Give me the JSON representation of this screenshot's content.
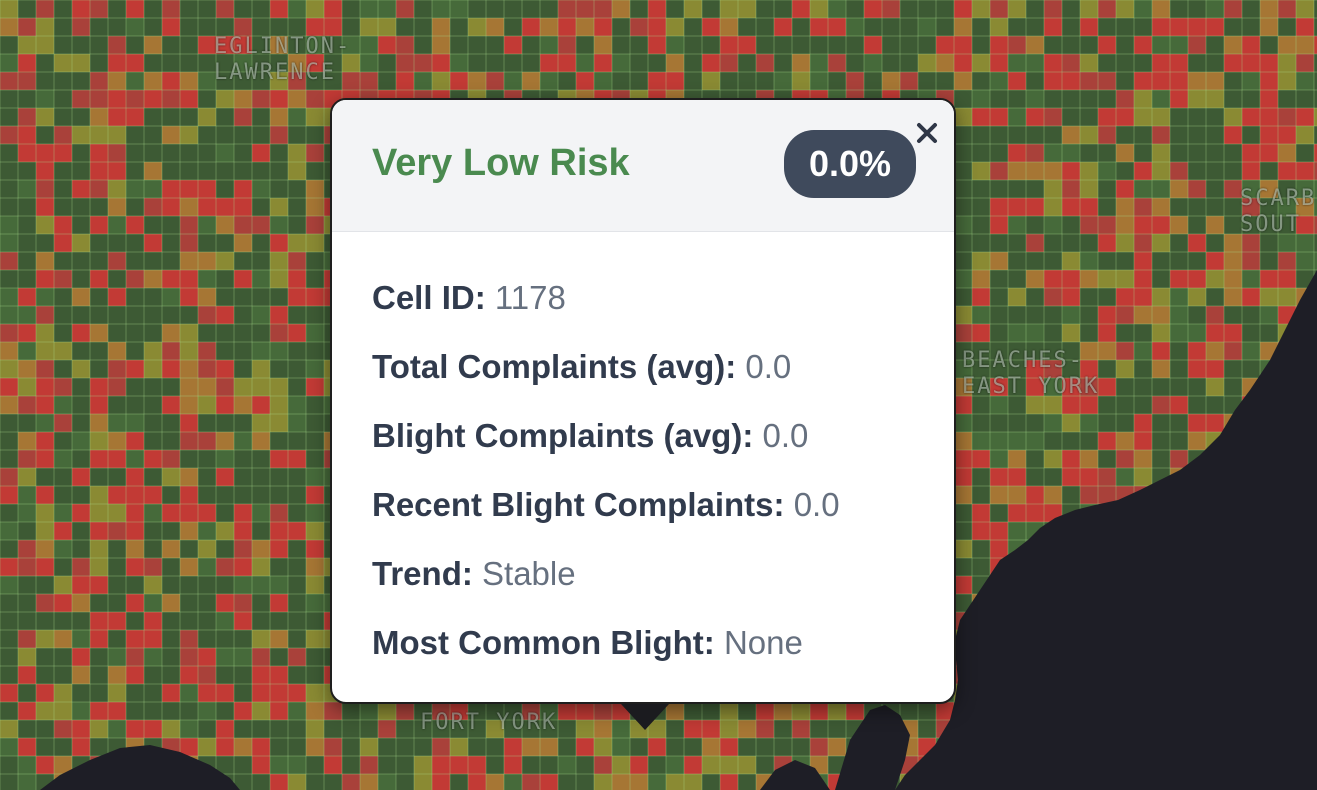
{
  "map": {
    "neighbourhood_labels": [
      {
        "name": "EGLINTON-\nLAWRENCE"
      },
      {
        "name": "SCARB\nSOUT"
      },
      {
        "name": "BEACHES-\nEAST YORK"
      },
      {
        "name": "FORT YORK"
      }
    ]
  },
  "popup": {
    "risk_label": "Very Low Risk",
    "risk_percent": "0.0%",
    "close_symbol": "×",
    "risk_color": "#4a8a4f",
    "fields": [
      {
        "label": "Cell ID:",
        "value": "1178"
      },
      {
        "label": "Total Complaints (avg):",
        "value": "0.0"
      },
      {
        "label": "Blight Complaints (avg):",
        "value": "0.0"
      },
      {
        "label": "Recent Blight Complaints:",
        "value": "0.0"
      },
      {
        "label": "Trend:",
        "value": "Stable"
      },
      {
        "label": "Most Common Blight:",
        "value": "None"
      }
    ]
  }
}
